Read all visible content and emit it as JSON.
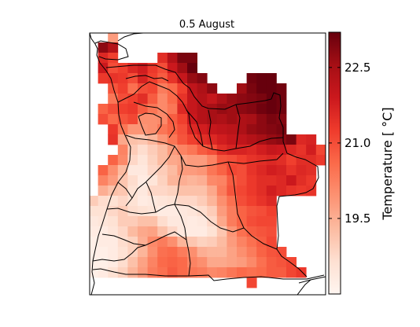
{
  "chart_data": {
    "type": "heatmap",
    "title": "0.5 August",
    "colorbar": {
      "label": "Temperature [$^\\circ C$]",
      "label_display": "Temperature [ °C]",
      "ticks": [
        22.5,
        21.0,
        19.5
      ],
      "tick_labels": [
        "22.5",
        "21.0",
        "19.5"
      ],
      "vmin": 18.0,
      "vmax": 23.2,
      "colormap": "Reds",
      "orientation": "vertical",
      "placement": "right"
    },
    "grid": {
      "columns": 24,
      "rows": 26,
      "note_cols_west_to_east": true,
      "note_rows_north_to_south": true,
      "values": [
        [
          null,
          null,
          null,
          null,
          null,
          null,
          null,
          null,
          null,
          null,
          null,
          null,
          null,
          null,
          null,
          null,
          null,
          null,
          null,
          null,
          null,
          null,
          null,
          null
        ],
        [
          null,
          null,
          19.8,
          null,
          null,
          null,
          null,
          null,
          null,
          null,
          null,
          null,
          null,
          null,
          null,
          null,
          null,
          null,
          null,
          null,
          null,
          null,
          null,
          null
        ],
        [
          null,
          22.8,
          22.3,
          null,
          null,
          null,
          null,
          null,
          null,
          null,
          null,
          null,
          null,
          null,
          null,
          null,
          null,
          null,
          null,
          null,
          null,
          null,
          null,
          null
        ],
        [
          null,
          21.6,
          21.2,
          null,
          null,
          null,
          null,
          21.5,
          22.3,
          23.0,
          23.0,
          null,
          null,
          null,
          null,
          null,
          null,
          null,
          null,
          null,
          null,
          null,
          null,
          null
        ],
        [
          null,
          21.9,
          21.0,
          21.2,
          21.6,
          21.8,
          21.3,
          21.0,
          21.9,
          22.6,
          23.2,
          null,
          null,
          null,
          null,
          null,
          null,
          null,
          null,
          null,
          null,
          null,
          null,
          null
        ],
        [
          null,
          21.3,
          21.4,
          21.3,
          21.0,
          21.7,
          21.2,
          20.8,
          21.4,
          22.0,
          22.7,
          22.9,
          null,
          null,
          null,
          null,
          23.1,
          23.2,
          23.2,
          null,
          null,
          null,
          null,
          null
        ],
        [
          null,
          null,
          20.9,
          21.2,
          20.5,
          21.0,
          21.1,
          20.3,
          20.6,
          21.2,
          22.1,
          22.4,
          22.8,
          null,
          null,
          22.6,
          23.0,
          23.2,
          23.2,
          23.1,
          null,
          null,
          null,
          null
        ],
        [
          null,
          null,
          20.4,
          21.0,
          21.2,
          21.5,
          20.8,
          20.1,
          20.6,
          21.4,
          22.0,
          22.3,
          22.0,
          22.4,
          22.7,
          22.8,
          22.9,
          23.0,
          23.2,
          23.1,
          null,
          null,
          null,
          null
        ],
        [
          null,
          20.7,
          21.0,
          21.2,
          21.3,
          20.8,
          20.4,
          20.1,
          20.4,
          21.6,
          22.0,
          22.3,
          22.5,
          22.7,
          22.6,
          22.8,
          22.9,
          23.1,
          23.2,
          23.1,
          null,
          null,
          null,
          null
        ],
        [
          null,
          21.0,
          20.6,
          20.9,
          21.1,
          20.0,
          20.0,
          20.1,
          20.8,
          21.2,
          21.9,
          22.3,
          22.5,
          22.4,
          22.6,
          22.4,
          22.5,
          22.8,
          23.0,
          22.9,
          null,
          null,
          null,
          null
        ],
        [
          null,
          null,
          21.3,
          20.4,
          19.9,
          19.9,
          20.0,
          20.4,
          20.7,
          21.0,
          21.6,
          21.8,
          22.0,
          22.1,
          22.2,
          22.4,
          22.7,
          22.8,
          22.9,
          23.0,
          null,
          null,
          null,
          null
        ],
        [
          null,
          null,
          21.4,
          19.6,
          19.2,
          19.1,
          19.4,
          19.9,
          20.4,
          20.9,
          21.2,
          21.5,
          21.6,
          21.8,
          22.0,
          22.1,
          22.3,
          22.5,
          22.7,
          22.8,
          23.0,
          21.6,
          21.7,
          null
        ],
        [
          null,
          null,
          null,
          20.2,
          19.0,
          18.7,
          19.0,
          19.3,
          19.8,
          20.2,
          20.4,
          20.8,
          21.0,
          21.5,
          21.7,
          21.7,
          21.6,
          21.8,
          22.0,
          21.9,
          21.6,
          21.4,
          21.8,
          21.1
        ],
        [
          null,
          null,
          20.7,
          20.1,
          18.8,
          18.5,
          18.9,
          19.3,
          19.6,
          19.7,
          19.8,
          19.8,
          20.2,
          20.9,
          21.0,
          21.2,
          21.4,
          21.5,
          21.6,
          21.5,
          21.2,
          21.5,
          21.5,
          21.3
        ],
        [
          null,
          20.7,
          20.0,
          19.3,
          18.4,
          18.4,
          18.8,
          19.0,
          19.3,
          19.8,
          19.8,
          19.9,
          20.4,
          20.7,
          21.1,
          21.0,
          21.4,
          21.6,
          21.8,
          21.7,
          21.4,
          21.6,
          21.5,
          null
        ],
        [
          null,
          20.2,
          19.8,
          19.1,
          18.7,
          18.3,
          18.5,
          18.9,
          19.4,
          19.5,
          19.4,
          19.5,
          20.1,
          20.2,
          20.8,
          21.0,
          21.3,
          21.5,
          21.5,
          21.6,
          21.9,
          21.5,
          21.3,
          null
        ],
        [
          null,
          19.5,
          19.2,
          19.1,
          18.6,
          18.4,
          18.8,
          18.8,
          18.9,
          19.2,
          19.2,
          19.2,
          19.6,
          20.3,
          20.9,
          21.1,
          21.3,
          21.5,
          21.8,
          21.6,
          21.4,
          21.3,
          21.4,
          null
        ],
        [
          19.0,
          18.7,
          18.6,
          18.8,
          18.6,
          18.3,
          18.4,
          18.5,
          18.6,
          18.8,
          18.8,
          19.0,
          19.4,
          20.0,
          20.5,
          21.0,
          21.2,
          21.4,
          21.6,
          null,
          null,
          null,
          null,
          null
        ],
        [
          18.6,
          18.6,
          18.8,
          19.0,
          18.7,
          18.6,
          18.5,
          18.3,
          18.3,
          18.4,
          18.5,
          18.7,
          19.0,
          19.8,
          20.3,
          20.7,
          20.9,
          21.0,
          21.2,
          null,
          null,
          null,
          null,
          null
        ],
        [
          18.4,
          18.5,
          18.6,
          19.0,
          19.0,
          19.2,
          19.2,
          18.7,
          18.4,
          18.4,
          18.3,
          18.4,
          18.8,
          19.6,
          20.3,
          20.7,
          21.0,
          21.1,
          21.1,
          null,
          null,
          null,
          null,
          null
        ],
        [
          18.3,
          18.3,
          18.5,
          18.8,
          19.3,
          19.6,
          19.7,
          19.2,
          18.8,
          18.4,
          18.3,
          18.3,
          18.6,
          19.1,
          19.9,
          20.5,
          20.8,
          20.9,
          21.0,
          null,
          null,
          null,
          null,
          null
        ],
        [
          18.2,
          18.3,
          18.3,
          18.7,
          18.9,
          19.5,
          20.1,
          20.3,
          20.0,
          19.4,
          19.1,
          18.9,
          19.0,
          19.3,
          19.8,
          20.2,
          20.5,
          20.8,
          21.1,
          null,
          null,
          null,
          null,
          null
        ],
        [
          18.2,
          18.2,
          18.3,
          18.6,
          18.9,
          19.4,
          20.0,
          20.5,
          20.6,
          20.3,
          20.0,
          19.5,
          19.4,
          19.4,
          19.7,
          20.0,
          20.3,
          20.7,
          20.9,
          21.0,
          null,
          null,
          null,
          null
        ],
        [
          18.2,
          18.2,
          18.3,
          18.7,
          19.2,
          19.7,
          20.2,
          20.6,
          20.7,
          20.6,
          20.2,
          20.0,
          19.6,
          19.6,
          19.7,
          19.8,
          20.1,
          20.5,
          20.8,
          20.9,
          21.1,
          null,
          null,
          null
        ],
        [
          18.2,
          18.3,
          18.6,
          18.9,
          19.4,
          19.8,
          20.3,
          20.5,
          20.8,
          20.6,
          20.4,
          20.3,
          20.1,
          20.2,
          20.4,
          20.6,
          20.5,
          20.6,
          20.8,
          20.8,
          21.1,
          21.3,
          null,
          null
        ],
        [
          null,
          null,
          null,
          null,
          null,
          null,
          null,
          null,
          null,
          null,
          null,
          null,
          null,
          null,
          null,
          null,
          21.1,
          null,
          null,
          null,
          null,
          null,
          null,
          null
        ]
      ]
    },
    "map_features": [
      "coastline",
      "country borders",
      "province borders"
    ],
    "grid_lines": false
  }
}
